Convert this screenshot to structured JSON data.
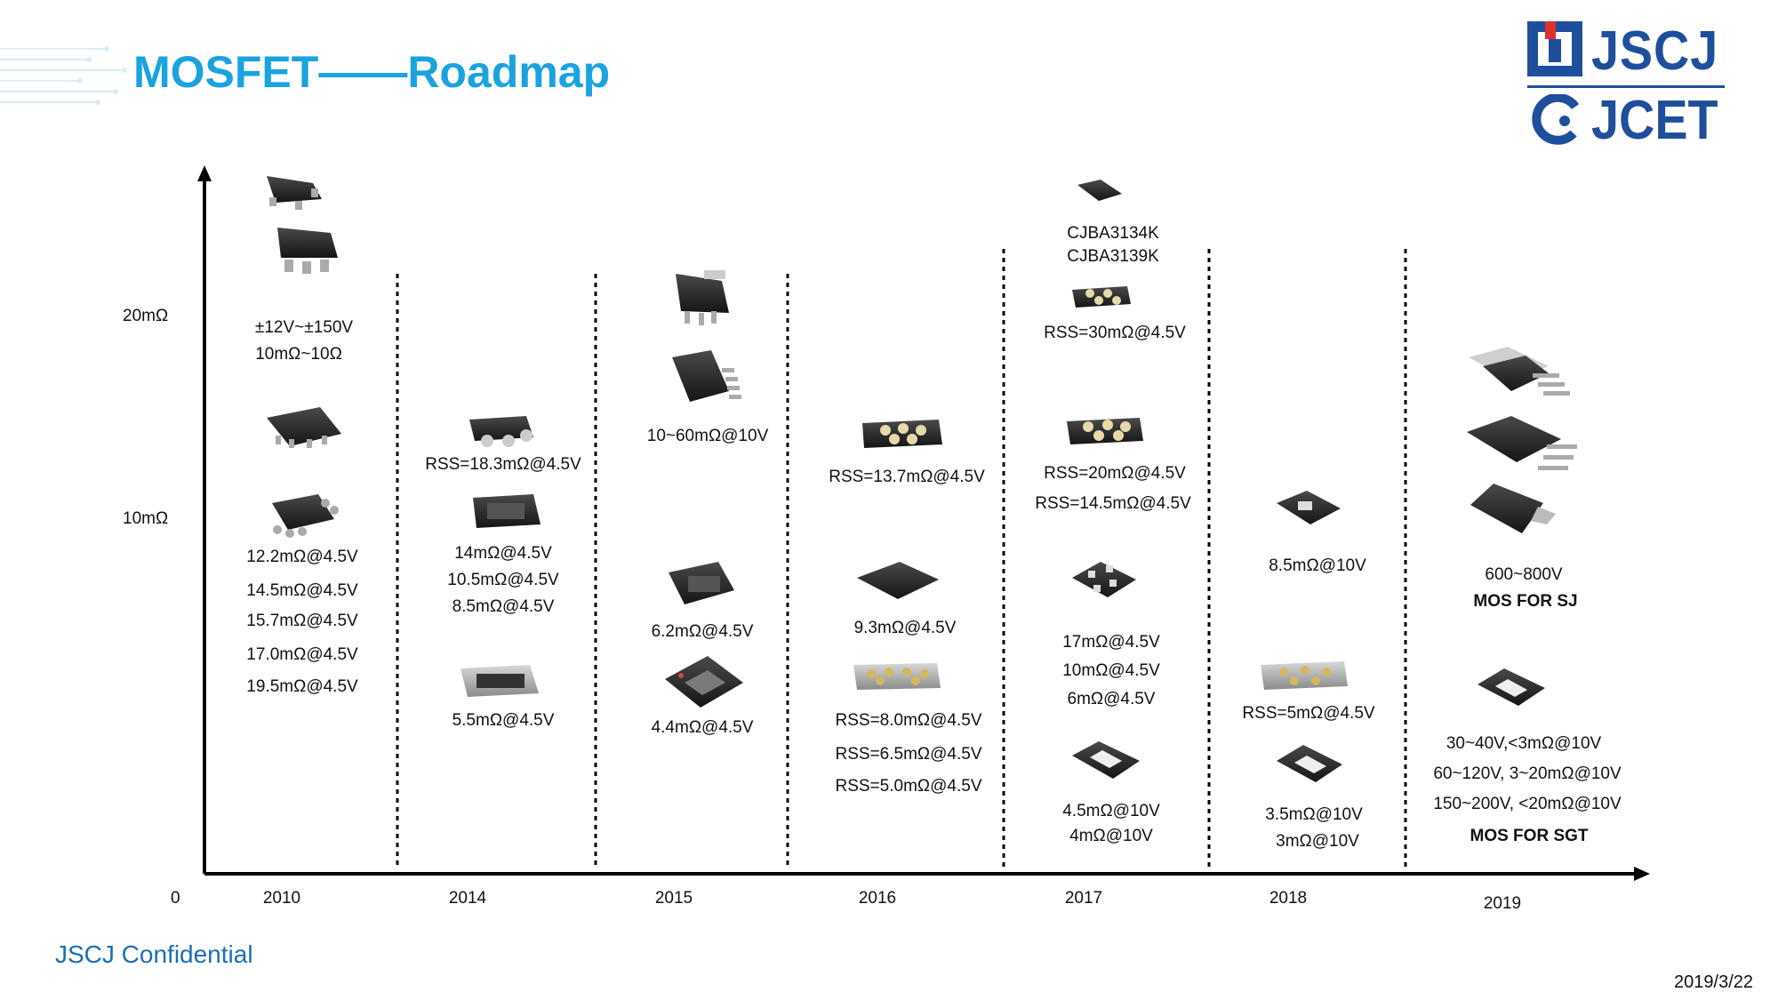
{
  "title": "MOSFET——Roadmap",
  "logo": {
    "top": "JSCJ",
    "bottom": "JCET"
  },
  "footer": "JSCJ Confidential",
  "date": "2019/3/22",
  "y_ticks": {
    "t20": "20mΩ",
    "t10": "10mΩ",
    "t0": "0"
  },
  "years": [
    "2010",
    "2014",
    "2015",
    "2016",
    "2017",
    "2018",
    "2019"
  ],
  "col2010": {
    "range1": "±12V~±150V",
    "range2": "10mΩ~10Ω",
    "specs": [
      "12.2mΩ@4.5V",
      "14.5mΩ@4.5V",
      "15.7mΩ@4.5V",
      "17.0mΩ@4.5V",
      "19.5mΩ@4.5V"
    ]
  },
  "col2014": {
    "rss": "RSS=18.3mΩ@4.5V",
    "specs": [
      "14mΩ@4.5V",
      "10.5mΩ@4.5V",
      "8.5mΩ@4.5V"
    ],
    "spec_low": "5.5mΩ@4.5V"
  },
  "col2015": {
    "range": "10~60mΩ@10V",
    "spec1": "6.2mΩ@4.5V",
    "spec2": "4.4mΩ@4.5V"
  },
  "col2016": {
    "rss": "RSS=13.7mΩ@4.5V",
    "spec": "9.3mΩ@4.5V",
    "rss_list": [
      "RSS=8.0mΩ@4.5V",
      "RSS=6.5mΩ@4.5V",
      "RSS=5.0mΩ@4.5V"
    ]
  },
  "col2017": {
    "part1": "CJBA3134K",
    "part2": "CJBA3139K",
    "rss1": "RSS=30mΩ@4.5V",
    "rss2": "RSS=20mΩ@4.5V",
    "rss3": "RSS=14.5mΩ@4.5V",
    "specs": [
      "17mΩ@4.5V",
      "10mΩ@4.5V",
      "6mΩ@4.5V"
    ],
    "low1": "4.5mΩ@10V",
    "low2": "4mΩ@10V"
  },
  "col2018": {
    "spec": "8.5mΩ@10V",
    "rss": "RSS=5mΩ@4.5V",
    "low1": "3.5mΩ@10V",
    "low2": "3mΩ@10V"
  },
  "col2019": {
    "sj_range": "600~800V",
    "sj_label": "MOS FOR SJ",
    "sgt_specs": [
      "30~40V,<3mΩ@10V",
      "60~120V, 3~20mΩ@10V",
      "150~200V, <20mΩ@10V"
    ],
    "sgt_label": "MOS FOR SGT"
  },
  "colors": {
    "title": "#1aa3df",
    "logo": "#1e4f9c",
    "footer": "#1a6fb4",
    "chip": "#2a2a2a"
  }
}
